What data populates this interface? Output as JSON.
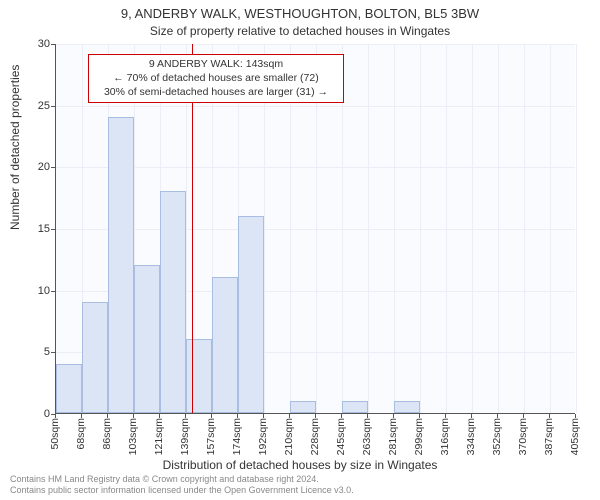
{
  "title": "9, ANDERBY WALK, WESTHOUGHTON, BOLTON, BL5 3BW",
  "subtitle": "Size of property relative to detached houses in Wingates",
  "chart": {
    "type": "histogram",
    "background_color": "#fafbff",
    "grid_color": "#eceef7",
    "axis_color": "#555555",
    "bar_fill": "#dbe5f6",
    "bar_border": "#a9bde0",
    "ref_line_color": "#cc0000",
    "ref_value": 143,
    "ylabel": "Number of detached properties",
    "xlabel": "Distribution of detached houses by size in Wingates",
    "ylim": [
      0,
      30
    ],
    "ytick_step": 5,
    "x_ticks": [
      "50sqm",
      "68sqm",
      "86sqm",
      "103sqm",
      "121sqm",
      "139sqm",
      "157sqm",
      "174sqm",
      "192sqm",
      "210sqm",
      "228sqm",
      "245sqm",
      "263sqm",
      "281sqm",
      "299sqm",
      "316sqm",
      "334sqm",
      "352sqm",
      "370sqm",
      "387sqm",
      "405sqm"
    ],
    "values": [
      4,
      9,
      24,
      12,
      18,
      6,
      11,
      16,
      0,
      1,
      0,
      1,
      0,
      1,
      0,
      0,
      0,
      0,
      0,
      0
    ],
    "annotation": {
      "line1": "9 ANDERBY WALK: 143sqm",
      "line2": "← 70% of detached houses are smaller (72)",
      "line3": "30% of semi-detached houses are larger (31) →"
    },
    "label_fontsize": 12,
    "tick_fontsize": 11
  },
  "footer": {
    "line1": "Contains HM Land Registry data © Crown copyright and database right 2024.",
    "line2": "Contains public sector information licensed under the Open Government Licence v3.0."
  }
}
